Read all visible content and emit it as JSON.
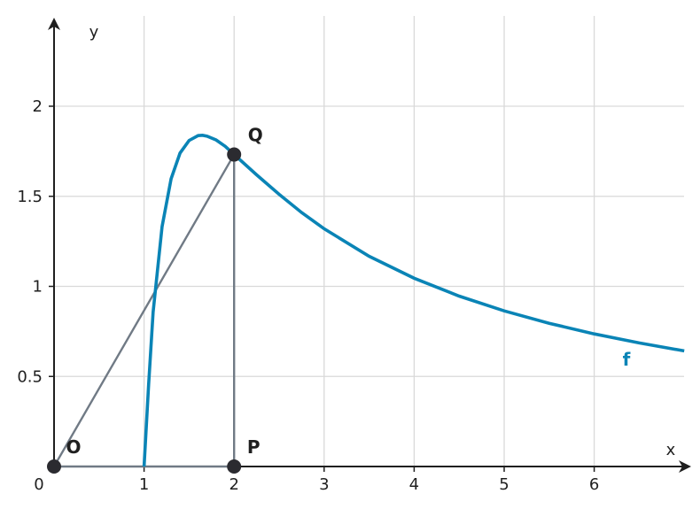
{
  "chart_data": {
    "type": "line",
    "xlabel": "x",
    "ylabel": "y",
    "xlim": [
      0,
      7
    ],
    "ylim": [
      0,
      2.45
    ],
    "x_ticks": [
      1,
      2,
      3,
      4,
      5,
      6
    ],
    "y_ticks": [
      0.5,
      1,
      1.5,
      2
    ],
    "origin_label": "0",
    "grid": true,
    "series": [
      {
        "name": "f",
        "color": "#0a84b6",
        "x": [
          1.0,
          1.05,
          1.1,
          1.2,
          1.3,
          1.4,
          1.5,
          1.6,
          1.65,
          1.7,
          1.8,
          1.9,
          2.0,
          2.25,
          2.5,
          2.75,
          3.0,
          3.5,
          4.0,
          4.5,
          5.0,
          5.5,
          6.0,
          6.5,
          7.0
        ],
        "values": [
          0.0,
          0.451,
          0.857,
          1.331,
          1.597,
          1.74,
          1.81,
          1.837,
          1.839,
          1.834,
          1.813,
          1.778,
          1.732,
          1.619,
          1.511,
          1.41,
          1.32,
          1.167,
          1.045,
          0.946,
          0.864,
          0.795,
          0.736,
          0.686,
          0.642
        ]
      }
    ],
    "points": [
      {
        "name": "O",
        "x": 0,
        "y": 0
      },
      {
        "name": "P",
        "x": 2,
        "y": 0
      },
      {
        "name": "Q",
        "x": 2,
        "y": 1.732
      }
    ],
    "segments": [
      {
        "from": "O",
        "to": "Q"
      },
      {
        "from": "P",
        "to": "Q"
      },
      {
        "from": "O",
        "to": "P"
      }
    ]
  }
}
